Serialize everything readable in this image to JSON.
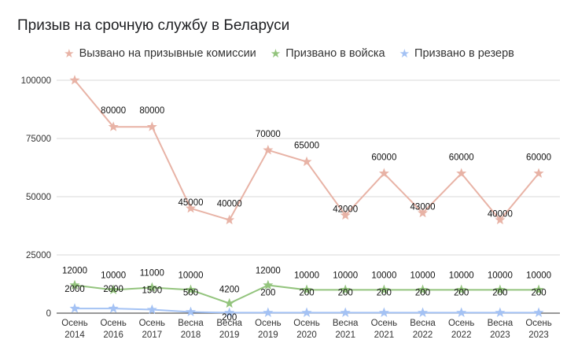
{
  "chart_data": {
    "type": "line",
    "title": "Призыв на срочную службу в Беларуси",
    "categories": [
      [
        "Осень",
        "2014"
      ],
      [
        "Осень",
        "2016"
      ],
      [
        "Осень",
        "2017"
      ],
      [
        "Весна",
        "2018"
      ],
      [
        "Весна",
        "2019"
      ],
      [
        "Осень",
        "2019"
      ],
      [
        "Осень",
        "2020"
      ],
      [
        "Весна",
        "2021"
      ],
      [
        "Осень",
        "2021"
      ],
      [
        "Весна",
        "2022"
      ],
      [
        "Осень",
        "2022"
      ],
      [
        "Весна",
        "2023"
      ],
      [
        "Осень",
        "2023"
      ]
    ],
    "y_ticks": [
      "0",
      "25000",
      "50000",
      "75000",
      "100000"
    ],
    "ylim": [
      0,
      100000
    ],
    "legend_position": "top",
    "series": [
      {
        "name": "Вызвано на призывные комиссии",
        "color": "#e8b3a6",
        "values": [
          100000,
          80000,
          80000,
          45000,
          40000,
          70000,
          65000,
          42000,
          60000,
          43000,
          60000,
          40000,
          60000
        ],
        "labels": [
          "",
          "80000",
          "80000",
          "45000",
          "40000",
          "70000",
          "65000",
          "42000",
          "60000",
          "43000",
          "60000",
          "40000",
          "60000"
        ]
      },
      {
        "name": "Призвано в войска",
        "color": "#93c47d",
        "values": [
          12000,
          10000,
          11000,
          10000,
          4200,
          12000,
          10000,
          10000,
          10000,
          10000,
          10000,
          10000,
          10000
        ],
        "labels": [
          "12000",
          "10000",
          "11000",
          "10000",
          "4200",
          "12000",
          "10000",
          "10000",
          "10000",
          "10000",
          "10000",
          "10000",
          "10000"
        ]
      },
      {
        "name": "Призвано в резерв",
        "color": "#a4c2f4",
        "values": [
          2000,
          2000,
          1500,
          500,
          200,
          200,
          200,
          200,
          200,
          200,
          200,
          200,
          200
        ],
        "labels": [
          "2000",
          "2000",
          "1500",
          "500",
          "200",
          "200",
          "200",
          "200",
          "200",
          "200",
          "200",
          "200",
          "200"
        ]
      }
    ]
  }
}
